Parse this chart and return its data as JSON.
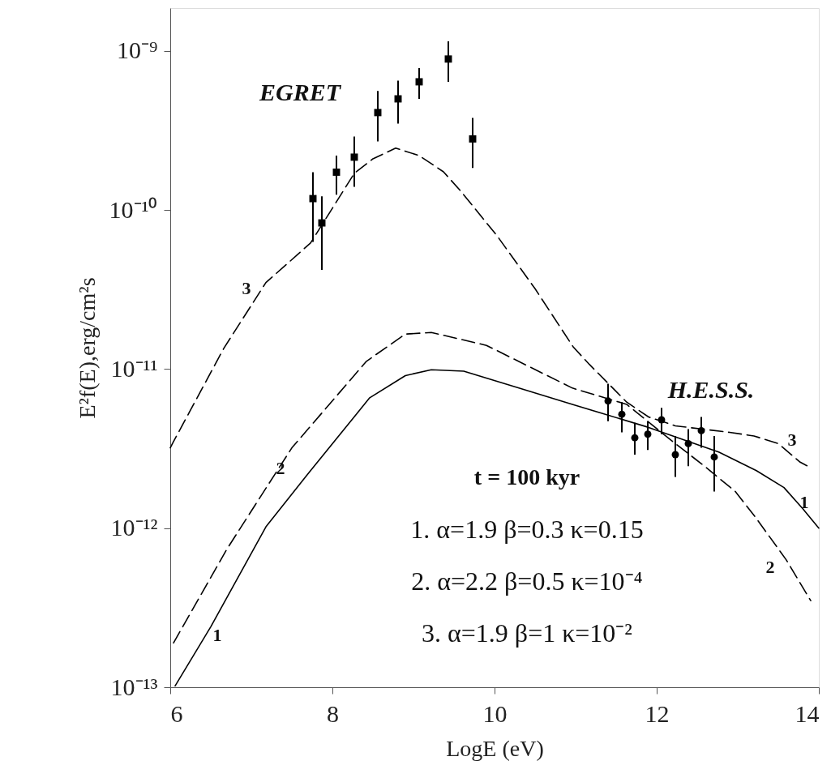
{
  "chart_data": {
    "type": "line",
    "xlabel": "LogE (eV)",
    "ylabel": "E²f(E),erg/cm²s",
    "log": "y",
    "xlim": [
      6,
      14
    ],
    "xticks": [
      6,
      8,
      10,
      12,
      14
    ],
    "ylim": [
      1e-13,
      1.86e-09
    ],
    "yticks": [
      {
        "value": 1e-13,
        "label": "10⁻¹³"
      },
      {
        "value": 1e-12,
        "label": "10⁻¹²"
      },
      {
        "value": 1e-11,
        "label": "10⁻¹¹"
      },
      {
        "value": 1e-10,
        "label": "10⁻¹⁰"
      },
      {
        "value": 1e-09,
        "label": "10⁻⁹"
      }
    ],
    "series": [
      {
        "color": "#000000",
        "line_style": "solid",
        "x": [
          6.06,
          6.5,
          7.18,
          7.7,
          8.46,
          8.9,
          9.22,
          9.62,
          10.3,
          10.96,
          11.9,
          12.77,
          13.23,
          13.57,
          13.8,
          14
        ],
        "values": [
          1.02e-13,
          2.4e-13,
          1.02e-12,
          2.2e-12,
          6.6e-12,
          9.1e-12,
          9.9e-12,
          9.7e-12,
          7.6e-12,
          6e-12,
          4.3e-12,
          3e-12,
          2.3e-12,
          1.8e-12,
          1.33e-12,
          1e-12
        ]
      },
      {
        "color": "#000000",
        "line_style": "dashed",
        "x": [
          6.04,
          6.7,
          7.5,
          8.42,
          8.9,
          9.22,
          9.9,
          10.96,
          11.63,
          12.23,
          12.57,
          12.97,
          13.23,
          13.6,
          13.9
        ],
        "values": [
          1.9e-13,
          7.4e-13,
          3.2e-12,
          1.12e-11,
          1.66e-11,
          1.7e-11,
          1.41e-11,
          7.6e-12,
          6e-12,
          3.4e-12,
          2.5e-12,
          1.7e-12,
          1.15e-12,
          6.3e-13,
          3.5e-13
        ]
      },
      {
        "color": "#000000",
        "line_style": "dashed",
        "x": [
          6.0,
          6.04,
          6.66,
          7.18,
          7.73,
          8.27,
          8.5,
          8.78,
          9.07,
          9.37,
          9.58,
          10.03,
          10.5,
          10.97,
          11.17,
          11.63,
          11.9,
          12.23,
          12.9,
          13.2,
          13.5,
          13.77,
          13.9
        ],
        "values": [
          3.2e-12,
          3.5e-12,
          1.35e-11,
          3.5e-11,
          6.2e-11,
          1.7e-10,
          2.1e-10,
          2.45e-10,
          2.2e-10,
          1.74e-10,
          1.32e-10,
          6.9e-11,
          3.2e-11,
          1.38e-11,
          1.07e-11,
          6.2e-12,
          5e-12,
          4.4e-12,
          4e-12,
          3.8e-12,
          3.4e-12,
          2.6e-12,
          2.4e-12
        ]
      },
      {
        "type": "scatter",
        "color": "#000000",
        "marker": "square",
        "x": [
          7.76,
          7.87,
          8.05,
          8.27,
          8.56,
          8.81,
          9.07,
          9.43,
          9.73
        ],
        "values": [
          1.18e-10,
          8.3e-11,
          1.73e-10,
          2.15e-10,
          4.1e-10,
          5e-10,
          6.4e-10,
          8.9e-10,
          2.8e-10
        ],
        "errors": [
          [
            6.3e-11,
            1.73e-10
          ],
          [
            4.2e-11,
            1.22e-10
          ],
          [
            1.25e-10,
            2.2e-10
          ],
          [
            1.4e-10,
            2.9e-10
          ],
          [
            2.7e-10,
            5.6e-10
          ],
          [
            3.5e-10,
            6.5e-10
          ],
          [
            5e-10,
            7.8e-10
          ],
          [
            6.4e-10,
            1.15e-09
          ],
          [
            1.84e-10,
            3.8e-10
          ]
        ]
      },
      {
        "type": "scatter",
        "color": "#000000",
        "marker": "circle",
        "x": [
          11.4,
          11.57,
          11.73,
          11.89,
          12.06,
          12.23,
          12.39,
          12.55,
          12.71
        ],
        "values": [
          6.3e-12,
          5.2e-12,
          3.7e-12,
          3.9e-12,
          4.8e-12,
          2.9e-12,
          3.4e-12,
          4.1e-12,
          2.8e-12
        ],
        "errors": [
          [
            4.7e-12,
            8.1e-12
          ],
          [
            4e-12,
            6.2e-12
          ],
          [
            2.9e-12,
            4.6e-12
          ],
          [
            3.1e-12,
            4.7e-12
          ],
          [
            3.9e-12,
            5.7e-12
          ],
          [
            2.1e-12,
            3.8e-12
          ],
          [
            2.45e-12,
            4.2e-12
          ],
          [
            3.2e-12,
            5e-12
          ],
          [
            1.7e-12,
            3.8e-12
          ]
        ]
      }
    ],
    "annotations": [
      "EGRET",
      "H.E.S.S.",
      "1",
      "2",
      "3",
      "1",
      "2",
      "3",
      "t = 100 kyr",
      "1. α=1.9  β=0.3  κ=0.15",
      "2. α=2.2  β=0.5  κ=10⁻⁴",
      "3. α=1.9  β=1  κ=10⁻²"
    ]
  }
}
